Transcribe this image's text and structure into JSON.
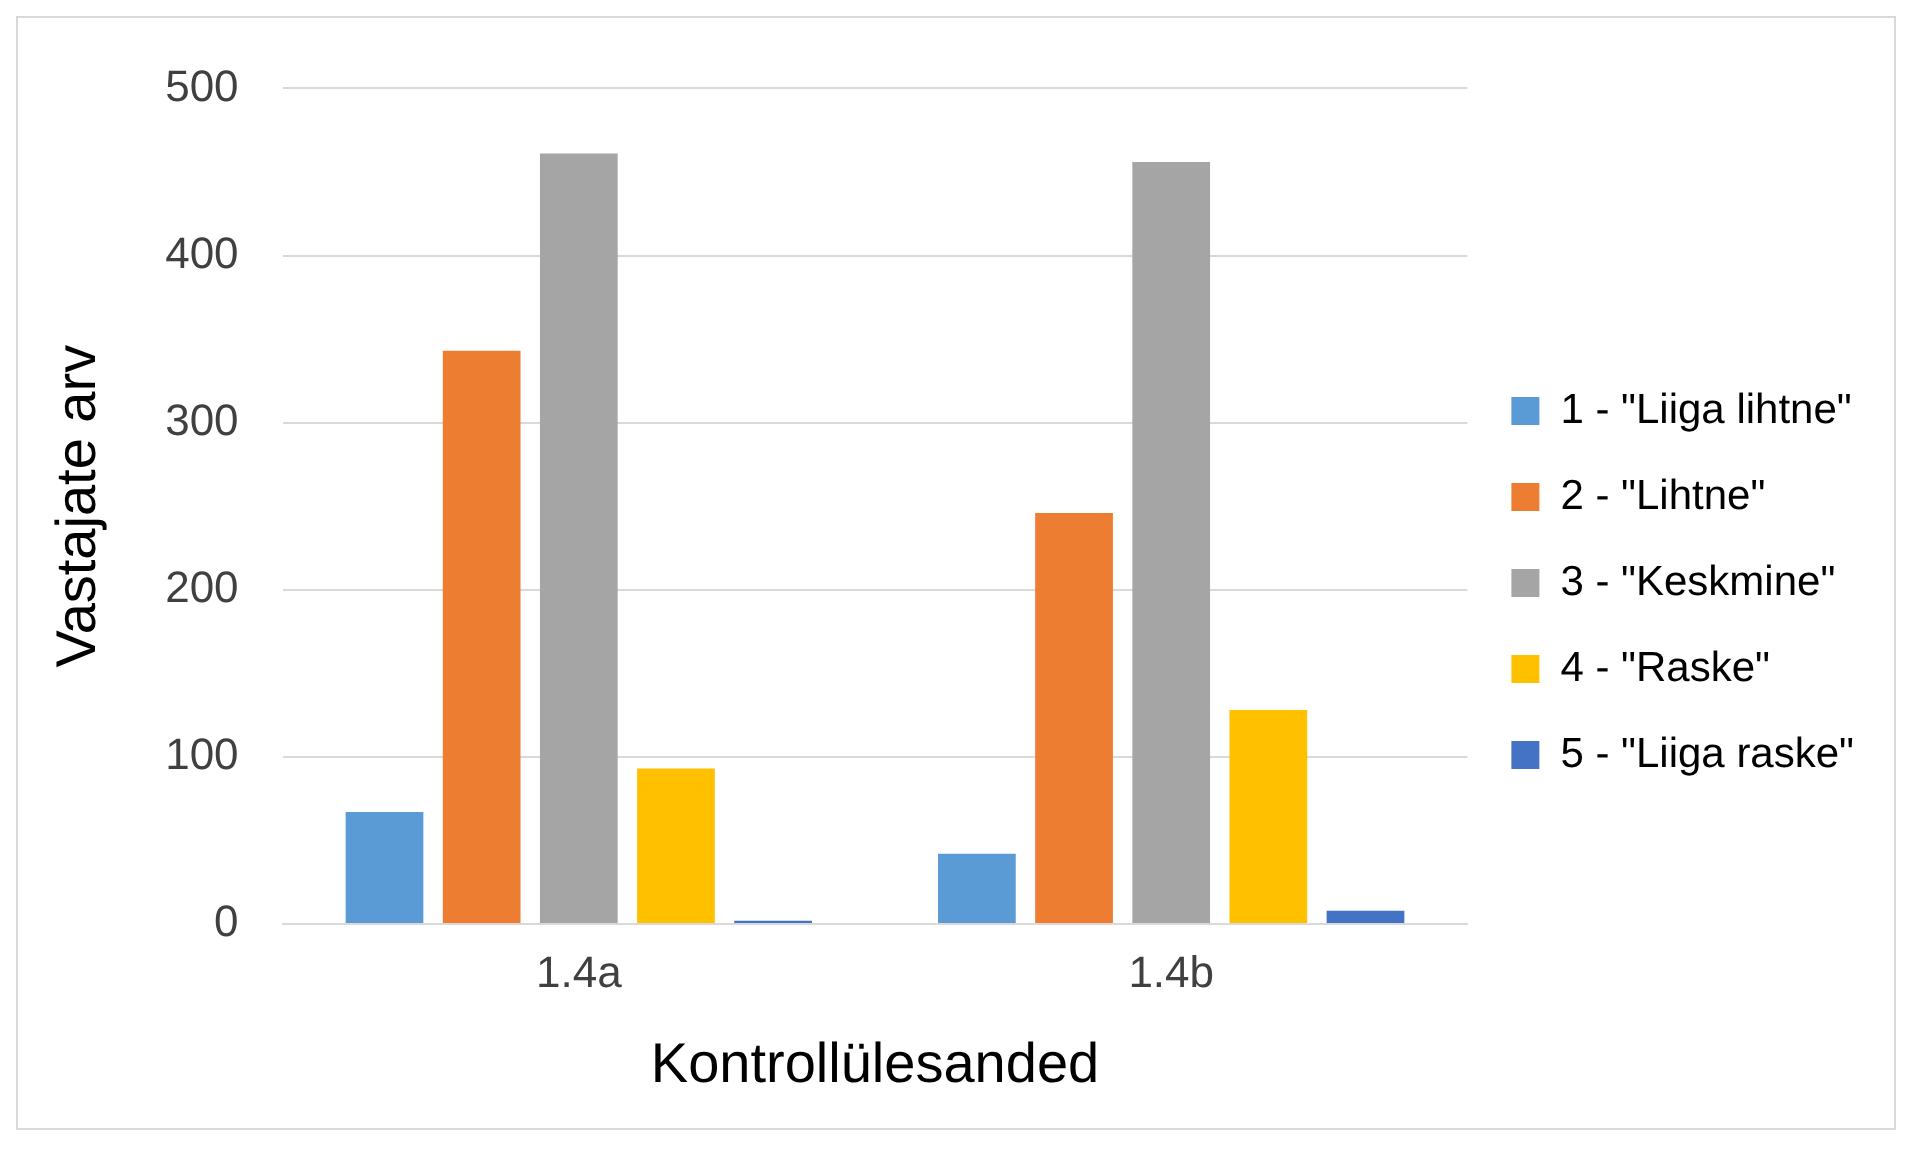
{
  "chart_data": {
    "type": "bar",
    "xlabel": "Kontrollülesanded",
    "ylabel": "Vastajate arv",
    "categories": [
      "1.4a",
      "1.4b"
    ],
    "series": [
      {
        "name": "1 - \"Liiga lihtne\"",
        "color": "#5b9bd5",
        "values": [
          67,
          42
        ]
      },
      {
        "name": "2 - \"Lihtne\"",
        "color": "#ed7d31",
        "values": [
          343,
          246
        ]
      },
      {
        "name": "3 - \"Keskmine\"",
        "color": "#a5a5a5",
        "values": [
          461,
          456
        ]
      },
      {
        "name": "4 - \"Raske\"",
        "color": "#ffc000",
        "values": [
          93,
          128
        ]
      },
      {
        "name": "5 - \"Liiga raske\"",
        "color": "#4472c4",
        "values": [
          2,
          8
        ]
      }
    ],
    "ylim": [
      0,
      500
    ],
    "yticks": [
      0,
      100,
      200,
      300,
      400,
      500
    ],
    "grid": "y",
    "legend": "right"
  }
}
